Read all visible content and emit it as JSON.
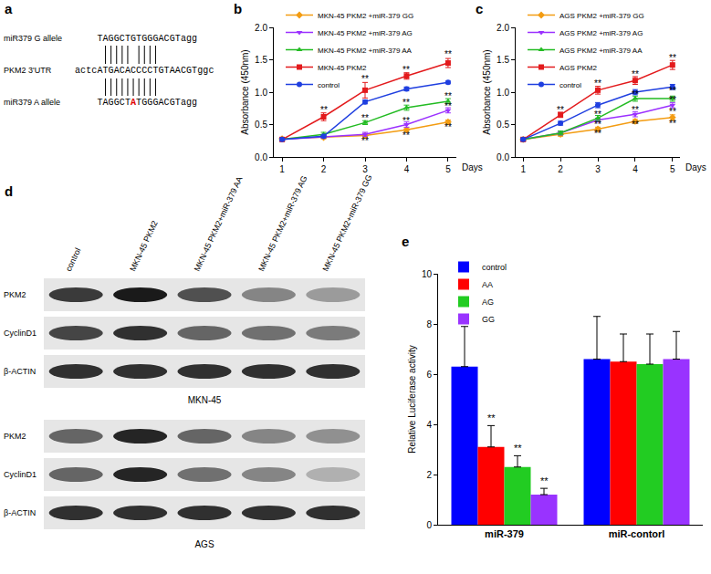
{
  "chart_data": [
    {
      "panel": "b",
      "type": "line",
      "x": [
        1,
        2,
        3,
        4,
        5
      ],
      "xlim": [
        0.8,
        5.2
      ],
      "xticks": [
        1,
        2,
        3,
        4,
        5
      ],
      "ylim": [
        0,
        2
      ],
      "yticks": [
        {
          "value": 0,
          "label": "0.0"
        },
        {
          "value": 0.5,
          "label": "0.5"
        },
        {
          "value": 1,
          "label": "1.0"
        },
        {
          "value": 1.5,
          "label": "1.5"
        },
        {
          "value": 2,
          "label": "2.0"
        }
      ],
      "x_label": "Days",
      "y_label": "Absorbance (450nm)",
      "legend": "upper left",
      "series": [
        {
          "name": "MKN-45 PKM2 +miR-379 GG",
          "color": "#f39c12",
          "marker": "diamond",
          "values": [
            0.28,
            0.3,
            0.33,
            0.42,
            0.54
          ],
          "errors": [
            0.02,
            0.02,
            0.03,
            0.03,
            0.03
          ]
        },
        {
          "name": "MKN-45 PKM2 +miR-379 AG",
          "color": "#9b30ff",
          "marker": "triangle-down",
          "values": [
            0.27,
            0.31,
            0.35,
            0.5,
            0.72
          ],
          "errors": [
            0.02,
            0.02,
            0.03,
            0.04,
            0.04
          ]
        },
        {
          "name": "MKN-45 PKM2 +miR-379 AA",
          "color": "#22bb22",
          "marker": "triangle-up",
          "values": [
            0.27,
            0.35,
            0.53,
            0.76,
            0.86
          ],
          "errors": [
            0.02,
            0.03,
            0.03,
            0.04,
            0.04
          ]
        },
        {
          "name": "MKN-45 PKM2",
          "color": "#e31a1c",
          "marker": "square",
          "values": [
            0.27,
            0.62,
            1.03,
            1.25,
            1.45
          ],
          "errors": [
            0.02,
            0.06,
            0.12,
            0.05,
            0.07
          ]
        },
        {
          "name": "control",
          "color": "#1f3fe0",
          "marker": "circle",
          "values": [
            0.27,
            0.32,
            0.85,
            1.05,
            1.15
          ],
          "errors": [
            0.02,
            0.02,
            0.03,
            0.03,
            0.02
          ]
        }
      ],
      "annotations": [
        {
          "x": 2,
          "y": 0.72,
          "text": "**"
        },
        {
          "x": 3,
          "y": 1.2,
          "text": "**"
        },
        {
          "x": 3,
          "y": 0.6,
          "text": "**"
        },
        {
          "x": 3,
          "y": 0.25,
          "text": "**"
        },
        {
          "x": 4,
          "y": 1.34,
          "text": "**"
        },
        {
          "x": 4,
          "y": 0.84,
          "text": "**"
        },
        {
          "x": 4,
          "y": 0.56,
          "text": "**"
        },
        {
          "x": 4,
          "y": 0.33,
          "text": "**"
        },
        {
          "x": 5,
          "y": 1.58,
          "text": "**"
        },
        {
          "x": 5,
          "y": 0.94,
          "text": "**"
        },
        {
          "x": 5,
          "y": 0.78,
          "text": "**"
        },
        {
          "x": 5,
          "y": 0.46,
          "text": "**"
        }
      ]
    },
    {
      "panel": "c",
      "type": "line",
      "x": [
        1,
        2,
        3,
        4,
        5
      ],
      "xlim": [
        0.8,
        5.2
      ],
      "xticks": [
        1,
        2,
        3,
        4,
        5
      ],
      "ylim": [
        0,
        2
      ],
      "yticks": [
        {
          "value": 0,
          "label": "0.0"
        },
        {
          "value": 0.5,
          "label": "0.5"
        },
        {
          "value": 1,
          "label": "1.0"
        },
        {
          "value": 1.5,
          "label": "1.5"
        },
        {
          "value": 2,
          "label": "2.0"
        }
      ],
      "x_label": "Days",
      "y_label": "Absorbance (450nm)",
      "legend": "upper left",
      "series": [
        {
          "name": "AGS PKM2 +miR-379 GG",
          "color": "#f39c12",
          "marker": "diamond",
          "values": [
            0.27,
            0.35,
            0.43,
            0.55,
            0.61
          ],
          "errors": [
            0.02,
            0.03,
            0.03,
            0.03,
            0.04
          ]
        },
        {
          "name": "AGS PKM2 +miR-379 AG",
          "color": "#9b30ff",
          "marker": "triangle-down",
          "values": [
            0.27,
            0.37,
            0.57,
            0.66,
            0.8
          ],
          "errors": [
            0.02,
            0.03,
            0.03,
            0.04,
            0.04
          ]
        },
        {
          "name": "AGS PKM2 +miR-379 AA",
          "color": "#22bb22",
          "marker": "triangle-up",
          "values": [
            0.27,
            0.37,
            0.6,
            0.9,
            0.9
          ],
          "errors": [
            0.02,
            0.03,
            0.04,
            0.04,
            0.04
          ]
        },
        {
          "name": "AGS PKM2",
          "color": "#e31a1c",
          "marker": "square",
          "values": [
            0.27,
            0.65,
            1.03,
            1.18,
            1.42
          ],
          "errors": [
            0.02,
            0.04,
            0.06,
            0.06,
            0.07
          ]
        },
        {
          "name": "control",
          "color": "#1f3fe0",
          "marker": "circle",
          "values": [
            0.27,
            0.52,
            0.8,
            1.0,
            1.08
          ],
          "errors": [
            0.02,
            0.03,
            0.04,
            0.04,
            0.04
          ]
        }
      ],
      "annotations": [
        {
          "x": 2,
          "y": 0.73,
          "text": "**"
        },
        {
          "x": 3,
          "y": 1.13,
          "text": "**"
        },
        {
          "x": 3,
          "y": 0.65,
          "text": "**"
        },
        {
          "x": 3,
          "y": 0.5,
          "text": "**"
        },
        {
          "x": 3,
          "y": 0.36,
          "text": "**"
        },
        {
          "x": 4,
          "y": 1.28,
          "text": "**"
        },
        {
          "x": 4,
          "y": 0.96,
          "text": "**"
        },
        {
          "x": 4,
          "y": 0.72,
          "text": "**"
        },
        {
          "x": 4,
          "y": 0.5,
          "text": "**"
        },
        {
          "x": 5,
          "y": 1.53,
          "text": "**"
        },
        {
          "x": 5,
          "y": 1.02,
          "text": "**"
        },
        {
          "x": 5,
          "y": 0.88,
          "text": "**"
        },
        {
          "x": 5,
          "y": 0.7,
          "text": "**"
        },
        {
          "x": 5,
          "y": 0.52,
          "text": "**"
        }
      ]
    },
    {
      "panel": "e",
      "type": "bar",
      "categories": [
        "miR-379",
        "miR-contorl"
      ],
      "ylim": [
        0,
        10
      ],
      "yticks": [
        0,
        2,
        4,
        6,
        8,
        10
      ],
      "y_label": "Relative Luciferase activity",
      "legend": "upper left",
      "series": [
        {
          "name": "control",
          "color": "#0000ff",
          "values": [
            6.3,
            6.6
          ],
          "errors": [
            1.6,
            1.7
          ],
          "significance": [
            null,
            null
          ]
        },
        {
          "name": "AA",
          "color": "#ff0000",
          "values": [
            3.1,
            6.5
          ],
          "errors": [
            0.85,
            1.1
          ],
          "significance": [
            "**",
            null
          ]
        },
        {
          "name": "AG",
          "color": "#22cc22",
          "values": [
            2.3,
            6.4
          ],
          "errors": [
            0.45,
            1.2
          ],
          "significance": [
            "**",
            null
          ]
        },
        {
          "name": "GG",
          "color": "#9933ff",
          "values": [
            1.2,
            6.6
          ],
          "errors": [
            0.25,
            1.1
          ],
          "significance": [
            "**",
            null
          ]
        }
      ]
    }
  ],
  "panel_a": {
    "panel": "a",
    "rows": [
      {
        "label": "miR379 G allele",
        "sequence": "TAGGCTGTGGGACGTagg"
      },
      {
        "label": "PKM2 3'UTR",
        "sequence": "actcATGACACCCCTGTAACGTggc"
      },
      {
        "label": "miR379 A allele",
        "sequence": "TAGGCTATGGGACGTagg",
        "highlight": 6
      }
    ]
  },
  "panel_d": {
    "panel": "d",
    "columns": [
      "control",
      "MKN-45 PKM2",
      "MKN-45 PKM2+miR-379 AA",
      "MKN-45 PKM2+miR-379 AG",
      "MKN-45 PKM2+miR-379 GG"
    ],
    "blots": [
      {
        "cell_line": "MKN-45",
        "rows": [
          "PKM2",
          "CyclinD1",
          "β-ACTIN"
        ]
      },
      {
        "cell_line": "AGS",
        "rows": [
          "PKM2",
          "CyclinD1",
          "β-ACTIN"
        ]
      }
    ]
  }
}
